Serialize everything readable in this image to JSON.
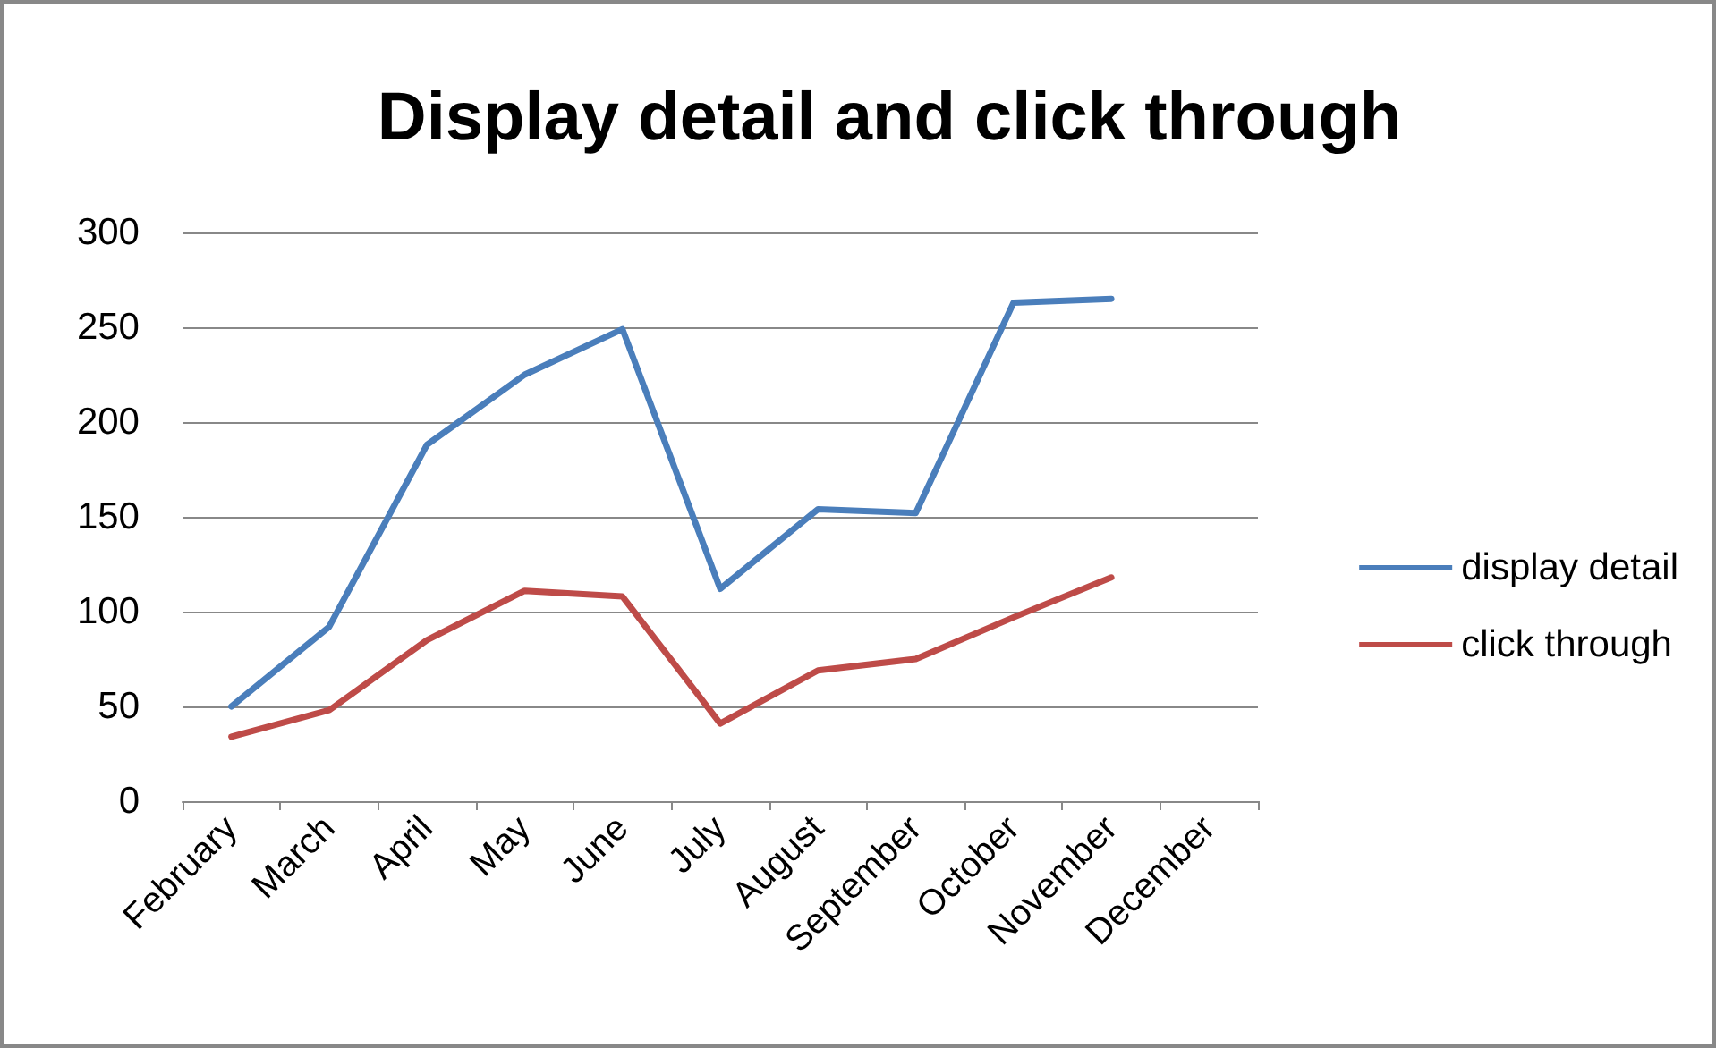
{
  "chart_data": {
    "type": "line",
    "title": "Display detail and click through",
    "categories": [
      "February",
      "March",
      "April",
      "May",
      "June",
      "July",
      "August",
      "September",
      "October",
      "November",
      "December"
    ],
    "series": [
      {
        "name": "display detail",
        "color": "#4a7ebb",
        "values": [
          50,
          92,
          188,
          225,
          249,
          112,
          154,
          152,
          263,
          265,
          null
        ]
      },
      {
        "name": "click through",
        "color": "#be4b48",
        "values": [
          34,
          48,
          85,
          111,
          108,
          41,
          69,
          75,
          97,
          118,
          null
        ]
      }
    ],
    "ylim": [
      0,
      300
    ],
    "yticks": [
      0,
      50,
      100,
      150,
      200,
      250,
      300
    ],
    "grid": "y",
    "legend": "right",
    "marker": "none",
    "line_style": "solid"
  }
}
